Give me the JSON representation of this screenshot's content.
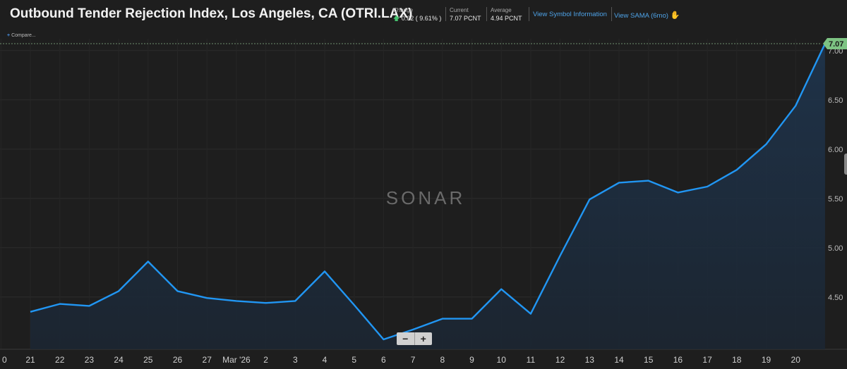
{
  "header": {
    "title": "Outbound Tender Rejection Index, Los Angeles, CA (OTRI.LAX)",
    "change_label": "Change",
    "change_value": "0.62 ( 9.61% )",
    "current_label": "Current",
    "current_value": "7.07 PCNT",
    "average_label": "Average",
    "average_value": "4.94 PCNT",
    "link_symbol_info": "View Symbol Information",
    "link_sama": "View SAMA (6mo)",
    "up_arrow_icon": "arrow-up-icon",
    "sama_icon": "hand-icon"
  },
  "compare_label": "Compare...",
  "zoom": {
    "minus": "−",
    "plus": "+"
  },
  "chart_data": {
    "type": "area",
    "watermark": "SONAR",
    "current_value_label": "7.07",
    "x_tick_labels": [
      "0",
      "21",
      "22",
      "23",
      "24",
      "25",
      "26",
      "27",
      "Mar '26",
      "2",
      "3",
      "4",
      "5",
      "6",
      "7",
      "8",
      "9",
      "10",
      "11",
      "12",
      "13",
      "14",
      "15",
      "16",
      "17",
      "18",
      "19",
      "20"
    ],
    "x": [
      "Feb 21",
      "Feb 22",
      "Feb 23",
      "Feb 24",
      "Feb 25",
      "Feb 26",
      "Feb 27",
      "Feb 28",
      "Mar 1",
      "Mar 2",
      "Mar 3",
      "Mar 4",
      "Mar 5",
      "Mar 6",
      "Mar 7",
      "Mar 8",
      "Mar 9",
      "Mar 10",
      "Mar 11",
      "Mar 12",
      "Mar 13",
      "Mar 14",
      "Mar 15",
      "Mar 16",
      "Mar 17",
      "Mar 18",
      "Mar 19",
      "Mar 20"
    ],
    "series": [
      {
        "values": [
          4.35,
          4.43,
          4.41,
          4.56,
          4.86,
          4.56,
          4.49,
          4.46,
          4.44,
          4.46,
          4.76,
          4.42,
          4.07,
          4.17,
          4.28,
          4.28,
          4.58,
          4.33,
          4.92,
          5.49,
          5.66,
          5.68,
          5.56,
          5.62,
          5.79,
          6.05,
          6.44,
          7.07
        ],
        "color": "#2196f3"
      }
    ],
    "y_ticks": [
      "4.50",
      "5.00",
      "5.50",
      "6.00",
      "6.50",
      "7.00"
    ],
    "ylim": [
      3.97,
      7.12
    ],
    "grid": true,
    "value_label_color": "#7dc383"
  }
}
